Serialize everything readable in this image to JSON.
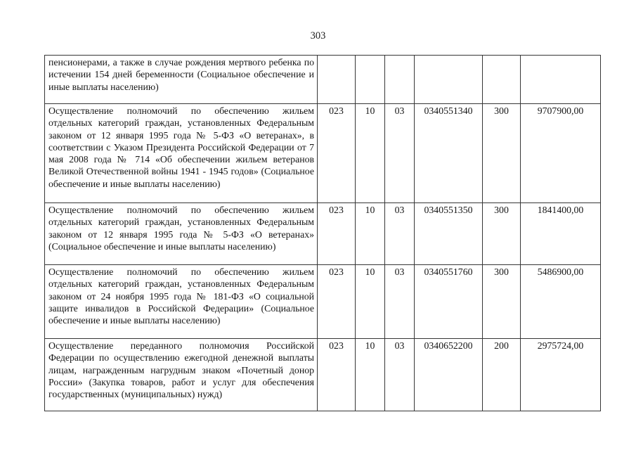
{
  "page": {
    "number": "303"
  },
  "table": {
    "cell_names": [
      "grbs-code",
      "section-code",
      "subsection-code",
      "target-article-code",
      "expense-type-code",
      "amount"
    ],
    "rows": [
      {
        "description": "пенсионерами, а также в случае рождения мертвого ребенка по истечении 154 дней беременности (Социальное обеспечение и иные выплаты населению)",
        "cells": [
          "",
          "",
          "",
          "",
          "",
          ""
        ]
      },
      {
        "description": "Осуществление полномочий по обеспечению жильем отдельных категорий граждан, установленных Федеральным законом от 12 января 1995 года № 5-ФЗ «О ветеранах», в соответствии с Указом Президента Российской Федерации от 7 мая 2008 года № 714 «Об обеспечении жильем ветеранов Великой Отечественной войны 1941 - 1945 годов» (Социальное обеспечение и иные выплаты населению)",
        "cells": [
          "023",
          "10",
          "03",
          "0340551340",
          "300",
          "9707900,00"
        ]
      },
      {
        "description": "Осуществление полномочий по обеспечению жильем отдельных категорий граждан, установленных Федеральным законом от 12 января 1995 года № 5-ФЗ «О ветеранах» (Социальное обеспечение и иные выплаты населению)",
        "cells": [
          "023",
          "10",
          "03",
          "0340551350",
          "300",
          "1841400,00"
        ]
      },
      {
        "description": "Осуществление полномочий по обеспечению жильем отдельных категорий граждан, установленных Федеральным законом от 24 ноября 1995 года № 181-ФЗ «О социальной защите инвалидов в Российской Федерации» (Социальное обеспечение и иные выплаты населению)",
        "cells": [
          "023",
          "10",
          "03",
          "0340551760",
          "300",
          "5486900,00"
        ]
      },
      {
        "description": "Осуществление переданного полномочия Российской Федерации по осуществлению ежегодной денежной выплаты лицам, награжденным нагрудным знаком «Почетный донор России» (Закупка товаров, работ и услуг для обеспечения государственных (муниципальных) нужд)",
        "cells": [
          "023",
          "10",
          "03",
          "0340652200",
          "200",
          "2975724,00"
        ]
      }
    ]
  }
}
